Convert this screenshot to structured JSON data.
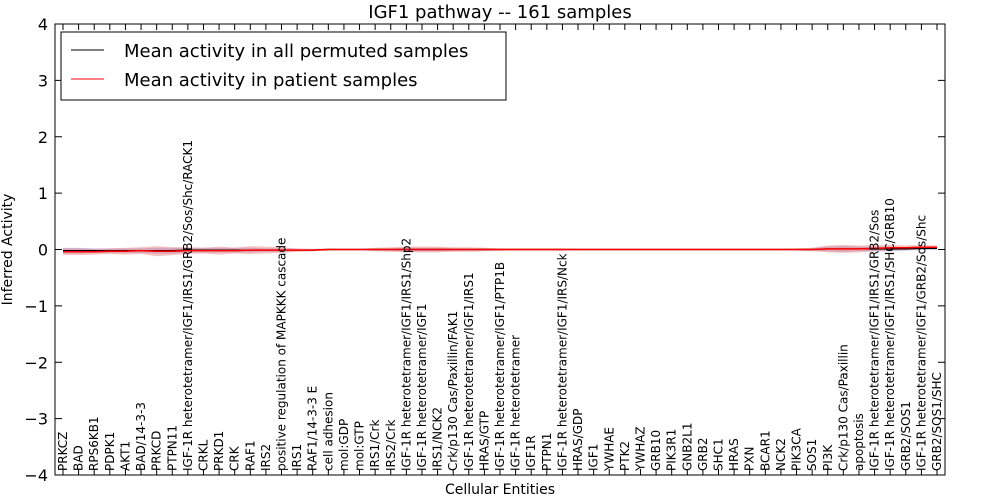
{
  "chart_data": {
    "type": "line",
    "title": "IGF1 pathway -- 161 samples",
    "xlabel": "Cellular Entities",
    "ylabel": "Inferred Activity",
    "ylim": [
      -4,
      4
    ],
    "yticks": [
      "4",
      "3",
      "2",
      "1",
      "0",
      "−1",
      "−2",
      "−3",
      "−4"
    ],
    "ytick_values": [
      4,
      3,
      2,
      1,
      0,
      -1,
      -2,
      -3,
      -4
    ],
    "legend_position": "top-left",
    "legend": [
      {
        "label": "Mean activity in all permuted samples",
        "color": "#000000"
      },
      {
        "label": "Mean activity in patient samples",
        "color": "#ff0000"
      }
    ],
    "categories": [
      "PRKCZ",
      "BAD",
      "RPS6KB1",
      "PDPK1",
      "AKT1",
      "BAD/14-3-3",
      "PRKCD",
      "PTPN11",
      "IGF-1R heterotetramer/IGF1/IRS1/GRB2/Sos/Shc/RACK1",
      "CRKL",
      "PRKD1",
      "CRK",
      "RAF1",
      "IRS2",
      "positive regulation of MAPKKK cascade",
      "IRS1",
      "RAF1/14-3-3 E",
      "cell adhesion",
      "mol:GDP",
      "mol:GTP",
      "IRS1/Crk",
      "IRS2/Crk",
      "IGF-1R heterotetramer/IGF1/IRS1/Shp2",
      "IGF-1R heterotetramer/IGF1",
      "IRS1/NCK2",
      "Crk/p130 Cas/Paxillin/FAK1",
      "IGF-1R heterotetramer/IGF1/IRS1",
      "HRAS/GTP",
      "IGF-1R heterotetramer/IGF1/PTP1B",
      "IGF-1R heterotetramer",
      "IGF1R",
      "PTPN1",
      "IGF-1R heterotetramer/IGF1/IRS/Nck",
      "HRAS/GDP",
      "IGF1",
      "YWHAE",
      "PTK2",
      "YWHAZ",
      "GRB10",
      "PIK3R1",
      "GNB2L1",
      "GRB2",
      "SHC1",
      "HRAS",
      "PXN",
      "BCAR1",
      "NCK2",
      "PIK3CA",
      "SOS1",
      "PI3K",
      "Crk/p130 Cas/Paxillin",
      "apoptosis",
      "IGF-1R heterotetramer/IGF1/IRS1/GRB2/Sos",
      "IGF-1R heterotetramer/IGF1/IRS1/SHC/GRB10",
      "GRB2/SOS1",
      "IGF-1R heterotetramer/IGF1/GRB2/Sos/Shc",
      "GRB2/SOS1/SHC"
    ],
    "series": [
      {
        "name": "Mean activity in all permuted samples",
        "color": "#000000",
        "values": [
          -0.02,
          -0.02,
          -0.02,
          -0.02,
          -0.02,
          -0.02,
          -0.02,
          -0.02,
          -0.01,
          -0.01,
          -0.01,
          -0.01,
          -0.01,
          -0.01,
          -0.01,
          -0.01,
          -0.01,
          0.0,
          0.0,
          0.0,
          0.0,
          0.0,
          0.0,
          0.0,
          0.0,
          0.0,
          0.0,
          0.0,
          0.0,
          0.0,
          0.0,
          0.0,
          0.0,
          0.0,
          0.0,
          0.0,
          0.0,
          0.0,
          0.0,
          0.0,
          0.0,
          0.0,
          0.0,
          0.0,
          0.0,
          0.0,
          0.0,
          0.0,
          0.0,
          0.01,
          0.01,
          0.01,
          0.01,
          0.01,
          0.01,
          0.02,
          0.02
        ]
      },
      {
        "name": "Mean activity in patient samples",
        "color": "#ff0000",
        "values": [
          -0.04,
          -0.04,
          -0.04,
          -0.03,
          -0.03,
          -0.02,
          -0.03,
          -0.03,
          -0.02,
          -0.02,
          -0.02,
          -0.02,
          -0.01,
          -0.01,
          -0.01,
          -0.01,
          -0.01,
          0.0,
          0.0,
          0.0,
          0.0,
          0.0,
          0.0,
          0.0,
          0.0,
          0.0,
          0.0,
          0.0,
          0.0,
          0.0,
          0.0,
          0.0,
          0.0,
          0.0,
          0.0,
          0.0,
          0.0,
          0.0,
          0.0,
          0.0,
          0.0,
          0.0,
          0.0,
          0.0,
          0.0,
          0.0,
          0.0,
          0.0,
          0.0,
          0.01,
          0.01,
          0.01,
          0.02,
          0.03,
          0.03,
          0.04,
          0.04
        ]
      }
    ],
    "spread_patient": [
      0.06,
      0.06,
      0.05,
      0.05,
      0.06,
      0.06,
      0.09,
      0.07,
      0.06,
      0.05,
      0.07,
      0.05,
      0.07,
      0.06,
      0.05,
      0.03,
      0.02,
      0.02,
      0.01,
      0.01,
      0.03,
      0.04,
      0.05,
      0.05,
      0.05,
      0.04,
      0.04,
      0.03,
      0.02,
      0.02,
      0.02,
      0.02,
      0.02,
      0.01,
      0.01,
      0.01,
      0.01,
      0.01,
      0.01,
      0.01,
      0.01,
      0.01,
      0.01,
      0.01,
      0.01,
      0.01,
      0.01,
      0.02,
      0.03,
      0.06,
      0.07,
      0.06,
      0.05,
      0.05,
      0.04,
      0.04,
      0.03
    ],
    "spread_permuted": [
      0.05,
      0.05,
      0.04,
      0.04,
      0.04,
      0.04,
      0.05,
      0.05,
      0.04,
      0.04,
      0.04,
      0.04,
      0.04,
      0.03,
      0.03,
      0.02,
      0.02,
      0.01,
      0.01,
      0.01,
      0.02,
      0.02,
      0.03,
      0.03,
      0.03,
      0.02,
      0.02,
      0.02,
      0.01,
      0.01,
      0.01,
      0.01,
      0.01,
      0.01,
      0.01,
      0.01,
      0.01,
      0.01,
      0.01,
      0.01,
      0.01,
      0.01,
      0.01,
      0.01,
      0.01,
      0.01,
      0.01,
      0.01,
      0.02,
      0.04,
      0.05,
      0.04,
      0.04,
      0.04,
      0.03,
      0.03,
      0.03
    ]
  }
}
